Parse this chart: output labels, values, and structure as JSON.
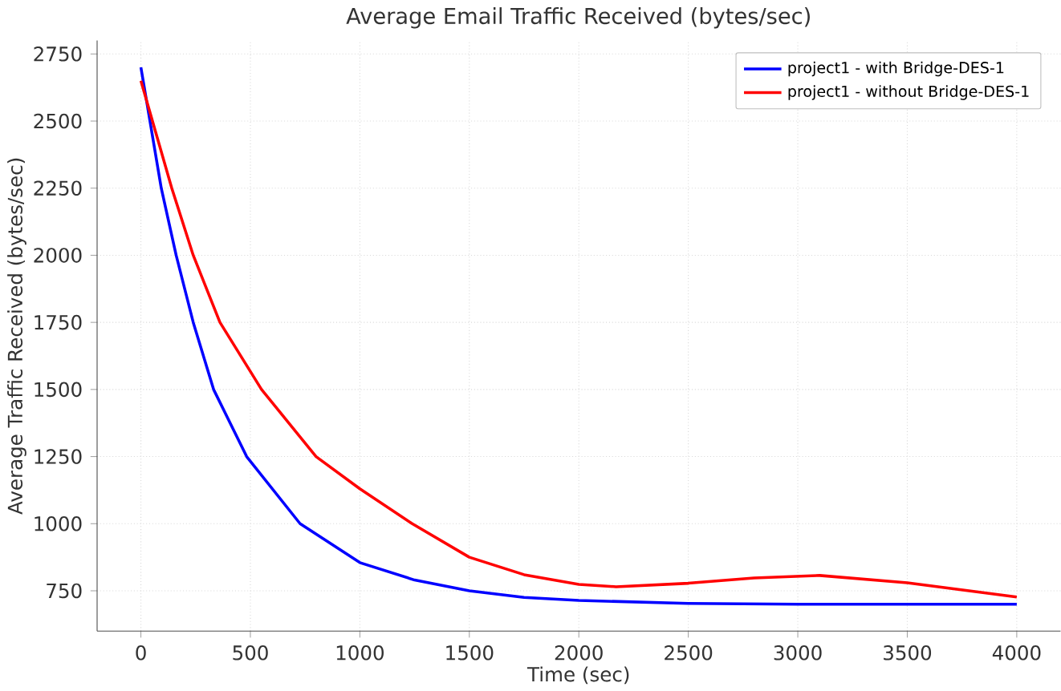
{
  "chart_data": {
    "type": "line",
    "title": "Average Email Traffic Received (bytes/sec)",
    "xlabel": "Time (sec)",
    "ylabel": "Average Traffic Received (bytes/sec)",
    "xlim": [
      -200,
      4200
    ],
    "ylim": [
      600,
      2800
    ],
    "xticks": [
      0,
      500,
      1000,
      1500,
      2000,
      2500,
      3000,
      3500,
      4000
    ],
    "yticks": [
      750,
      1000,
      1250,
      1500,
      1750,
      2000,
      2250,
      2500,
      2750
    ],
    "grid": true,
    "legend": "top right",
    "marker": "none",
    "line_style": "solid",
    "series": [
      {
        "name": "project1 - with Bridge-DES-1",
        "color": "#0000ff",
        "x": [
          0,
          93,
          161,
          239,
          332,
          483,
          727,
          1000,
          1250,
          1500,
          1750,
          2000,
          2500,
          3000,
          3500,
          4000
        ],
        "values": [
          2700,
          2250,
          2000,
          1750,
          1500,
          1250,
          1000,
          855,
          790,
          750,
          725,
          714,
          703,
          700,
          700,
          700
        ]
      },
      {
        "name": "project1 - without Bridge-DES-1",
        "color": "#ff0000",
        "x": [
          0,
          141,
          239,
          361,
          551,
          800,
          1000,
          1239,
          1500,
          1750,
          2000,
          2170,
          2500,
          2800,
          3100,
          3500,
          4000
        ],
        "values": [
          2650,
          2250,
          2000,
          1750,
          1500,
          1250,
          1130,
          1000,
          875,
          810,
          774,
          765,
          778,
          798,
          807,
          780,
          727
        ]
      }
    ]
  }
}
